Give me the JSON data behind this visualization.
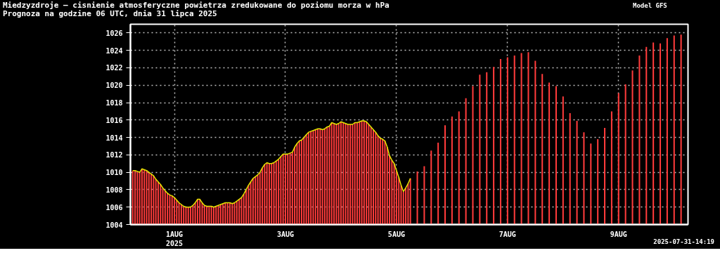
{
  "chart_data": {
    "type": "bar",
    "title": "Miedzyzdroje — cisnienie atmosferyczne powietrza zredukowane do poziomu morza w hPa",
    "subtitle": "Prognoza na godzine 06 UTC, dnia 31 lipca 2025",
    "annotations": [
      "Model GFS",
      "2025-07-31-14:19"
    ],
    "x": [
      "2025-07-31T06:00",
      "2025-07-31T07:00",
      "2025-07-31T08:00",
      "2025-07-31T09:00",
      "2025-07-31T10:00",
      "2025-07-31T11:00",
      "2025-07-31T12:00",
      "2025-07-31T13:00",
      "2025-07-31T14:00",
      "2025-07-31T15:00",
      "2025-07-31T16:00",
      "2025-07-31T17:00",
      "2025-07-31T18:00",
      "2025-07-31T19:00",
      "2025-07-31T20:00",
      "2025-07-31T21:00",
      "2025-07-31T22:00",
      "2025-07-31T23:00",
      "2025-08-01T00:00",
      "2025-08-01T01:00",
      "2025-08-01T02:00",
      "2025-08-01T03:00",
      "2025-08-01T04:00",
      "2025-08-01T05:00",
      "2025-08-01T06:00",
      "2025-08-01T07:00",
      "2025-08-01T08:00",
      "2025-08-01T09:00",
      "2025-08-01T10:00",
      "2025-08-01T11:00",
      "2025-08-01T12:00",
      "2025-08-01T13:00",
      "2025-08-01T14:00",
      "2025-08-01T15:00",
      "2025-08-01T16:00",
      "2025-08-01T17:00",
      "2025-08-01T18:00",
      "2025-08-01T19:00",
      "2025-08-01T20:00",
      "2025-08-01T21:00",
      "2025-08-01T22:00",
      "2025-08-01T23:00",
      "2025-08-02T00:00",
      "2025-08-02T01:00",
      "2025-08-02T02:00",
      "2025-08-02T03:00",
      "2025-08-02T04:00",
      "2025-08-02T05:00",
      "2025-08-02T06:00",
      "2025-08-02T07:00",
      "2025-08-02T08:00",
      "2025-08-02T09:00",
      "2025-08-02T10:00",
      "2025-08-02T11:00",
      "2025-08-02T12:00",
      "2025-08-02T13:00",
      "2025-08-02T14:00",
      "2025-08-02T15:00",
      "2025-08-02T16:00",
      "2025-08-02T17:00",
      "2025-08-02T18:00",
      "2025-08-02T19:00",
      "2025-08-02T20:00",
      "2025-08-02T21:00",
      "2025-08-02T22:00",
      "2025-08-02T23:00",
      "2025-08-03T00:00",
      "2025-08-03T01:00",
      "2025-08-03T02:00",
      "2025-08-03T03:00",
      "2025-08-03T04:00",
      "2025-08-03T05:00",
      "2025-08-03T06:00",
      "2025-08-03T07:00",
      "2025-08-03T08:00",
      "2025-08-03T09:00",
      "2025-08-03T10:00",
      "2025-08-03T11:00",
      "2025-08-03T12:00",
      "2025-08-03T13:00",
      "2025-08-03T14:00",
      "2025-08-03T15:00",
      "2025-08-03T16:00",
      "2025-08-03T17:00",
      "2025-08-03T18:00",
      "2025-08-03T19:00",
      "2025-08-03T20:00",
      "2025-08-03T21:00",
      "2025-08-03T22:00",
      "2025-08-03T23:00",
      "2025-08-04T00:00",
      "2025-08-04T01:00",
      "2025-08-04T02:00",
      "2025-08-04T03:00",
      "2025-08-04T04:00",
      "2025-08-04T05:00",
      "2025-08-04T06:00",
      "2025-08-04T07:00",
      "2025-08-04T08:00",
      "2025-08-04T09:00",
      "2025-08-04T10:00",
      "2025-08-04T11:00",
      "2025-08-04T12:00",
      "2025-08-04T13:00",
      "2025-08-04T14:00",
      "2025-08-04T15:00",
      "2025-08-04T16:00",
      "2025-08-04T17:00",
      "2025-08-04T18:00",
      "2025-08-04T19:00",
      "2025-08-04T20:00",
      "2025-08-04T21:00",
      "2025-08-04T22:00",
      "2025-08-04T23:00",
      "2025-08-05T00:00",
      "2025-08-05T01:00",
      "2025-08-05T02:00",
      "2025-08-05T03:00",
      "2025-08-05T04:00",
      "2025-08-05T05:00",
      "2025-08-05T06:00"
    ],
    "series": [
      {
        "color": "#ff3b3b",
        "values": [
          1010.2,
          1010.2,
          1010.1,
          1010.0,
          1010.4,
          1010.3,
          1010.2,
          1010.0,
          1009.8,
          1009.6,
          1009.2,
          1008.9,
          1008.6,
          1008.2,
          1007.9,
          1007.6,
          1007.4,
          1007.3,
          1007.1,
          1006.8,
          1006.5,
          1006.3,
          1006.1,
          1006.0,
          1006.0,
          1006.0,
          1006.2,
          1006.5,
          1006.9,
          1006.9,
          1006.5,
          1006.2,
          1006.1,
          1006.1,
          1006.1,
          1006.0,
          1006.1,
          1006.2,
          1006.3,
          1006.4,
          1006.5,
          1006.5,
          1006.5,
          1006.4,
          1006.5,
          1006.7,
          1006.9,
          1007.1,
          1007.5,
          1008.0,
          1008.5,
          1008.9,
          1009.3,
          1009.5,
          1009.7,
          1010.0,
          1010.5,
          1010.9,
          1011.1,
          1011.0,
          1011.0,
          1011.1,
          1011.3,
          1011.5,
          1011.8,
          1012.1,
          1012.1,
          1012.1,
          1012.2,
          1012.3,
          1012.9,
          1013.3,
          1013.6,
          1013.7,
          1014.0,
          1014.3,
          1014.6,
          1014.7,
          1014.8,
          1014.9,
          1015.0,
          1015.0,
          1014.9,
          1015.0,
          1015.2,
          1015.3,
          1015.7,
          1015.6,
          1015.5,
          1015.6,
          1015.8,
          1015.7,
          1015.6,
          1015.5,
          1015.5,
          1015.5,
          1015.7,
          1015.7,
          1015.8,
          1015.9,
          1015.9,
          1015.8,
          1015.5,
          1015.2,
          1014.9,
          1014.6,
          1014.2,
          1013.9,
          1013.8,
          1013.6,
          1012.9,
          1011.9,
          1011.4,
          1011.0,
          1010.2,
          1009.4,
          1008.5,
          1007.8,
          1008.2,
          1008.7,
          1009.3
        ]
      },
      {
        "color": "#ff3b3b",
        "x": [
          "2025-08-05T09:00",
          "2025-08-05T12:00",
          "2025-08-05T15:00",
          "2025-08-05T18:00",
          "2025-08-05T21:00",
          "2025-08-06T00:00",
          "2025-08-06T03:00",
          "2025-08-06T06:00",
          "2025-08-06T09:00",
          "2025-08-06T12:00",
          "2025-08-06T15:00",
          "2025-08-06T18:00",
          "2025-08-06T21:00",
          "2025-08-07T00:00",
          "2025-08-07T03:00",
          "2025-08-07T06:00",
          "2025-08-07T09:00",
          "2025-08-07T12:00",
          "2025-08-07T15:00",
          "2025-08-07T18:00",
          "2025-08-07T21:00",
          "2025-08-08T00:00",
          "2025-08-08T03:00",
          "2025-08-08T06:00",
          "2025-08-08T09:00",
          "2025-08-08T12:00",
          "2025-08-08T15:00",
          "2025-08-08T18:00",
          "2025-08-08T21:00",
          "2025-08-09T00:00",
          "2025-08-09T03:00",
          "2025-08-09T06:00",
          "2025-08-09T09:00",
          "2025-08-09T12:00",
          "2025-08-09T15:00",
          "2025-08-09T18:00",
          "2025-08-09T21:00",
          "2025-08-10T00:00",
          "2025-08-10T03:00"
        ],
        "values": [
          1010.1,
          1010.7,
          1012.5,
          1013.4,
          1015.4,
          1016.4,
          1017.0,
          1018.5,
          1019.9,
          1021.2,
          1021.5,
          1022.1,
          1023.0,
          1023.2,
          1023.4,
          1023.7,
          1023.8,
          1022.8,
          1021.3,
          1020.3,
          1019.9,
          1018.7,
          1016.8,
          1015.9,
          1014.6,
          1013.3,
          1013.8,
          1015.1,
          1017.0,
          1019.1,
          1020.1,
          1021.7,
          1023.4,
          1024.4,
          1024.9,
          1024.8,
          1025.4,
          1025.7,
          1025.8
        ]
      },
      {
        "type": "line",
        "color": "#e6e600",
        "values": [
          1010.2,
          1010.2,
          1010.1,
          1010.0,
          1010.4,
          1010.3,
          1010.2,
          1010.0,
          1009.8,
          1009.6,
          1009.2,
          1008.9,
          1008.6,
          1008.2,
          1007.9,
          1007.6,
          1007.4,
          1007.3,
          1007.1,
          1006.8,
          1006.5,
          1006.3,
          1006.1,
          1006.0,
          1006.0,
          1006.0,
          1006.2,
          1006.5,
          1006.9,
          1006.9,
          1006.5,
          1006.2,
          1006.1,
          1006.1,
          1006.1,
          1006.0,
          1006.1,
          1006.2,
          1006.3,
          1006.4,
          1006.5,
          1006.5,
          1006.5,
          1006.4,
          1006.5,
          1006.7,
          1006.9,
          1007.1,
          1007.5,
          1008.0,
          1008.5,
          1008.9,
          1009.3,
          1009.5,
          1009.7,
          1010.0,
          1010.5,
          1010.9,
          1011.1,
          1011.0,
          1011.0,
          1011.1,
          1011.3,
          1011.5,
          1011.8,
          1012.1,
          1012.1,
          1012.1,
          1012.2,
          1012.3,
          1012.9,
          1013.3,
          1013.6,
          1013.7,
          1014.0,
          1014.3,
          1014.6,
          1014.7,
          1014.8,
          1014.9,
          1015.0,
          1015.0,
          1014.9,
          1015.0,
          1015.2,
          1015.3,
          1015.7,
          1015.6,
          1015.5,
          1015.6,
          1015.8,
          1015.7,
          1015.6,
          1015.5,
          1015.5,
          1015.5,
          1015.7,
          1015.7,
          1015.8,
          1015.9,
          1015.9,
          1015.8,
          1015.5,
          1015.2,
          1014.9,
          1014.6,
          1014.2,
          1013.9,
          1013.8,
          1013.6,
          1012.9,
          1011.9,
          1011.4,
          1011.0,
          1010.2,
          1009.4,
          1008.5,
          1007.8,
          1008.2,
          1008.7,
          1009.3
        ]
      }
    ],
    "xlim": [
      "2025-07-31T05:00",
      "2025-08-10T06:00"
    ],
    "xticks": [
      {
        "value": "2025-08-01",
        "label": "1AUG\n2025"
      },
      {
        "value": "2025-08-03",
        "label": "3AUG"
      },
      {
        "value": "2025-08-05",
        "label": "5AUG"
      },
      {
        "value": "2025-08-07",
        "label": "7AUG"
      },
      {
        "value": "2025-08-09",
        "label": "9AUG"
      }
    ],
    "ylim": [
      1004,
      1027
    ],
    "yticks": [
      1004,
      1006,
      1008,
      1010,
      1012,
      1014,
      1016,
      1018,
      1020,
      1022,
      1024,
      1026
    ],
    "grid": true
  }
}
